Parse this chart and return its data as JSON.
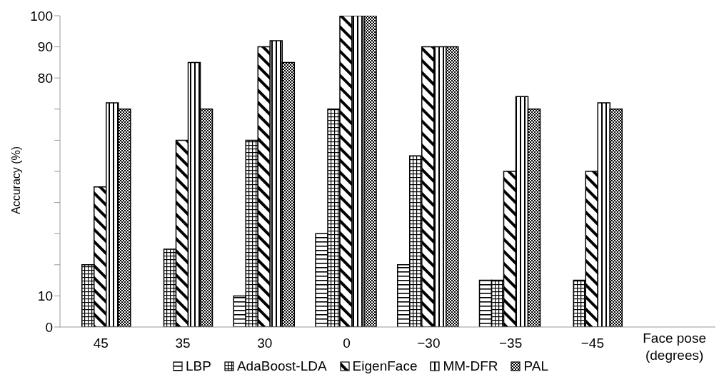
{
  "chart_data": {
    "type": "bar",
    "categories": [
      "45",
      "35",
      "30",
      "0",
      "−30",
      "−35",
      "−45",
      null
    ],
    "xlabel": "Face pose\n(degrees)",
    "ylabel": "Accuracy (%)",
    "series": [
      {
        "name": "LBP",
        "color": "#000000",
        "values": [
          null,
          null,
          10,
          30,
          20,
          15,
          null,
          null
        ]
      },
      {
        "name": "AdaBoost-LDA",
        "color": "#000000",
        "values": [
          20,
          25,
          60,
          70,
          55,
          15,
          15,
          null
        ]
      },
      {
        "name": "EigenFace",
        "color": "#000000",
        "values": [
          45,
          60,
          90,
          100,
          90,
          50,
          50,
          null
        ]
      },
      {
        "name": "MM-DFR",
        "color": "#000000",
        "values": [
          72,
          85,
          92,
          100,
          90,
          74,
          72,
          null
        ]
      },
      {
        "name": "PAL",
        "color": "#000000",
        "values": [
          70,
          70,
          85,
          100,
          90,
          70,
          70,
          null
        ]
      }
    ],
    "ylim": [
      0,
      100
    ],
    "yticks": [
      0,
      10,
      {
        "value": 20,
        "label": null
      },
      {
        "value": 30,
        "label": null
      },
      {
        "value": 40,
        "label": null
      },
      {
        "value": 50,
        "label": null
      },
      {
        "value": 60,
        "label": null
      },
      {
        "value": 70,
        "label": null
      },
      80,
      90,
      100
    ],
    "grid": false,
    "legend": "bottom"
  }
}
